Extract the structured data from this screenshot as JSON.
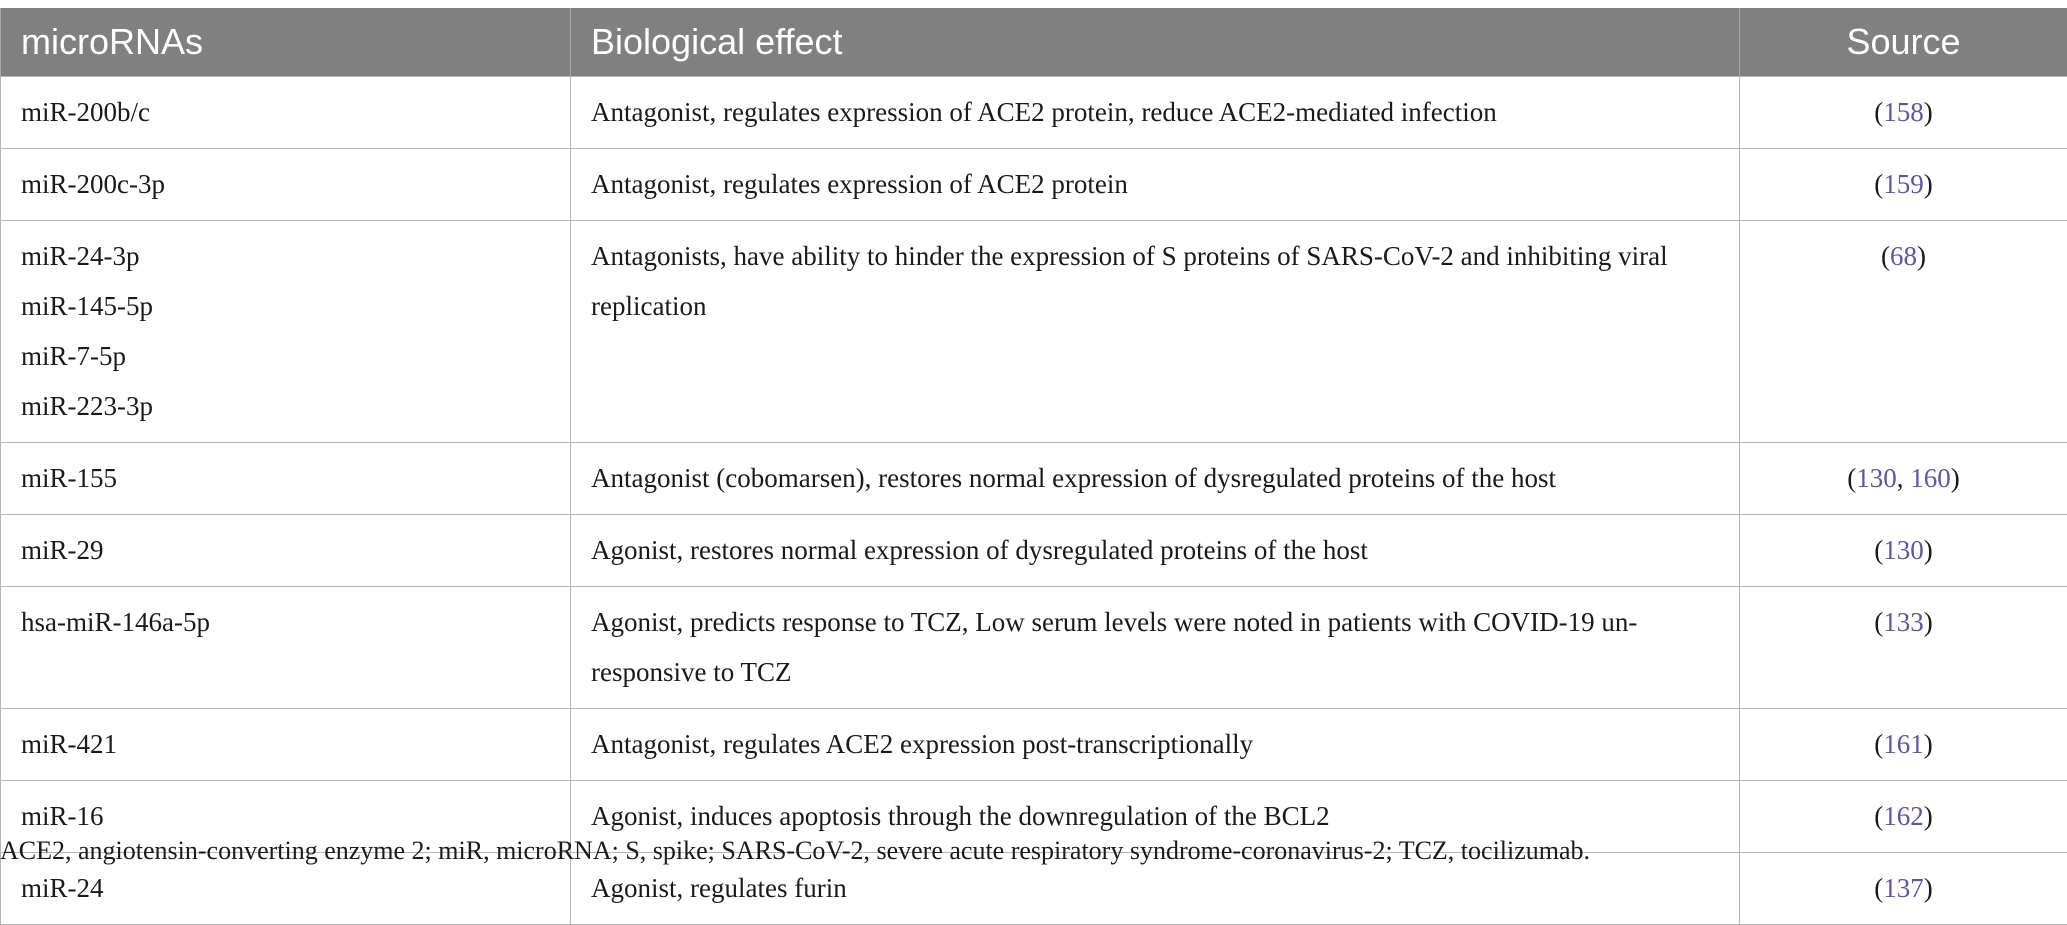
{
  "table": {
    "headers": {
      "mirna": "microRNAs",
      "effect": "Biological effect",
      "source": "Source"
    },
    "rows": [
      {
        "mirnas": [
          "miR-200b/c"
        ],
        "effect": "Antagonist, regulates expression of ACE2 protein, reduce ACE2-mediated infection",
        "refs": [
          "158"
        ]
      },
      {
        "mirnas": [
          "miR-200c-3p"
        ],
        "effect": "Antagonist, regulates expression of ACE2 protein",
        "refs": [
          "159"
        ]
      },
      {
        "mirnas": [
          "miR-24-3p",
          "miR-145-5p",
          "miR-7-5p",
          "miR-223-3p"
        ],
        "effect": "Antagonists, have ability to hinder the expression of S proteins of SARS-CoV-2 and inhibiting viral replication",
        "refs": [
          "68"
        ]
      },
      {
        "mirnas": [
          "miR-155"
        ],
        "effect": "Antagonist (cobomarsen), restores normal expression of dysregulated proteins of the host",
        "refs": [
          "130",
          "160"
        ]
      },
      {
        "mirnas": [
          "miR-29"
        ],
        "effect": "Agonist, restores normal expression of dysregulated proteins of the host",
        "refs": [
          "130"
        ]
      },
      {
        "mirnas": [
          "hsa-miR-146a-5p"
        ],
        "effect": "Agonist, predicts response to TCZ, Low serum levels were noted in patients with COVID-19 un-responsive to TCZ",
        "refs": [
          "133"
        ]
      },
      {
        "mirnas": [
          "miR-421"
        ],
        "effect": "Antagonist, regulates ACE2 expression post-transcriptionally",
        "refs": [
          "161"
        ]
      },
      {
        "mirnas": [
          "miR-16"
        ],
        "effect": "Agonist, induces apoptosis through the downregulation of the BCL2",
        "refs": [
          "162"
        ]
      },
      {
        "mirnas": [
          "miR-24"
        ],
        "effect": "Agonist, regulates furin",
        "refs": [
          "137"
        ]
      }
    ]
  },
  "footnote": "ACE2, angiotensin-converting enzyme 2; miR, microRNA; S, spike; SARS-CoV-2, severe acute respiratory syndrome-coronavirus-2; TCZ, tocilizumab.",
  "colors": {
    "header_bg": "#7f807f",
    "header_text": "#ffffff",
    "ref_link": "#5b56a6"
  }
}
